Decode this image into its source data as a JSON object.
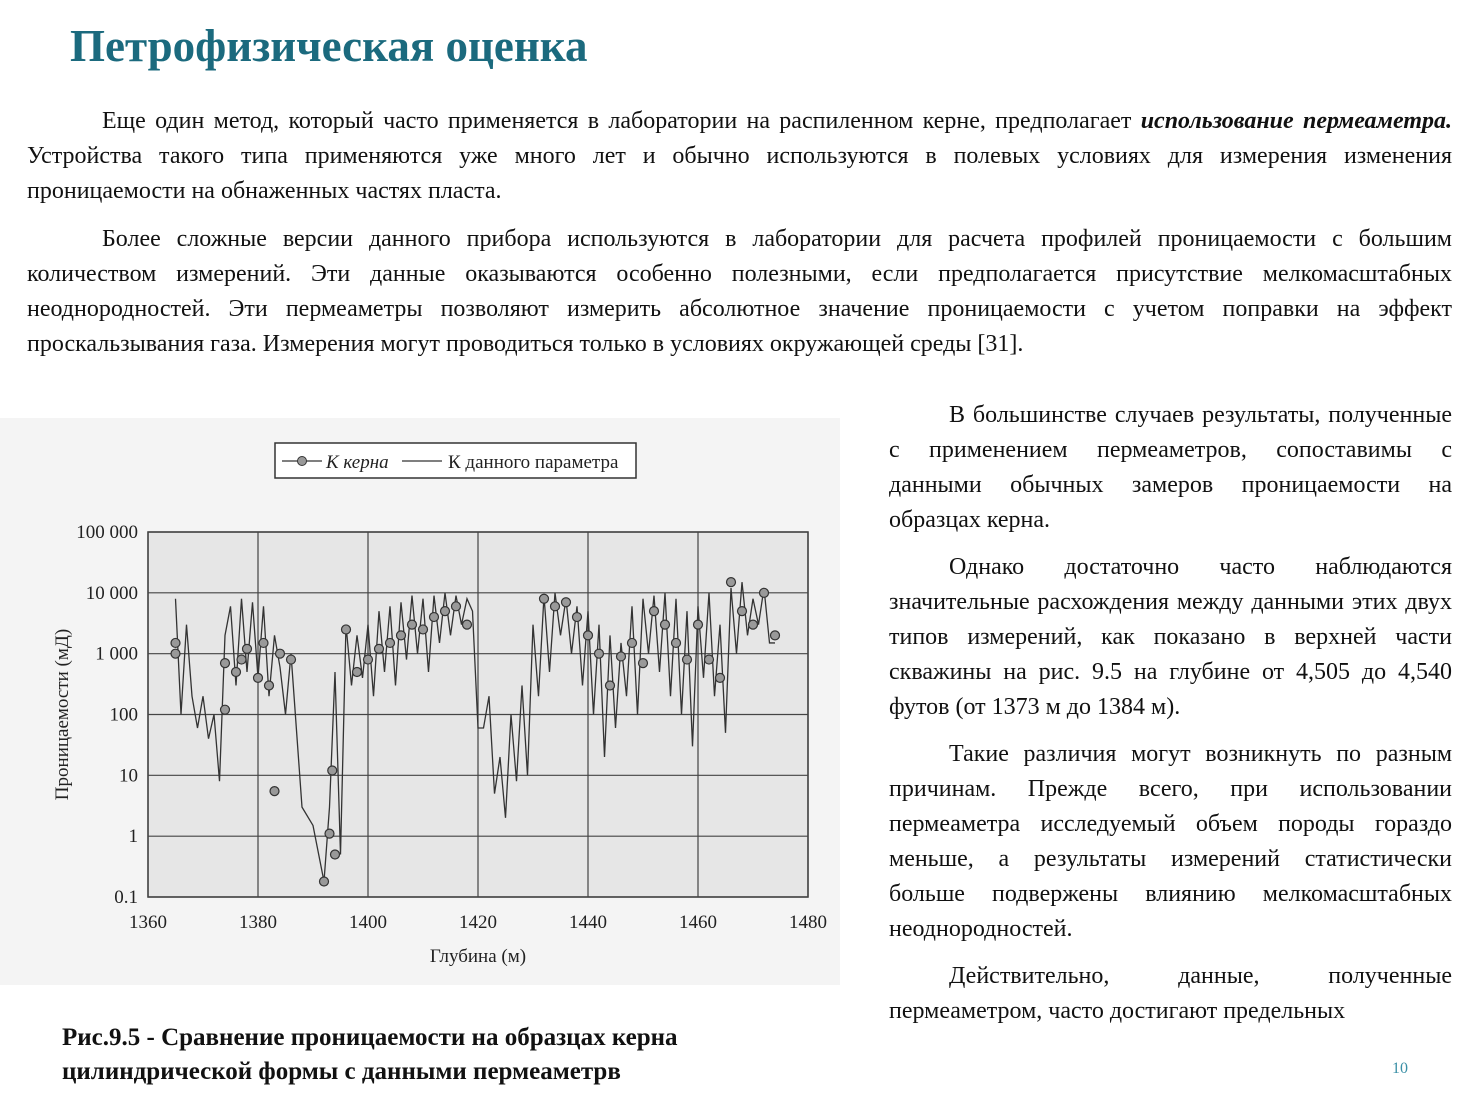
{
  "title": "Петрофизическая оценка",
  "paragraphs": [
    {
      "before": "Еще один метод, который часто применяется в лаборатории на распиленном керне, предполагает ",
      "emphasis": "использование пермеаметра.",
      "after": " Устройства такого типа применяются уже много лет и обычно используются в полевых условиях для измерения изменения проницаемости на обнаженных частях пласта."
    },
    {
      "text": "Более сложные версии данного прибора используются в лаборатории для расчета профилей проницаемости с большим количеством измерений. Эти данные оказываются особенно полезными, если предполагается присутствие мелкомасштабных неоднородностей. Эти пермеаметры позволяют измерить абсолютное значение проницаемости с учетом поправки на эффект проскальзывания газа. Измерения могут проводиться только в условиях окружающей среды [31]."
    }
  ],
  "side_paragraphs": [
    "В большинстве случаев результаты, полученные с применением пермеаметров, сопоставимы с данными обычных замеров проницаемости на образцах керна.",
    "Однако достаточно часто наблюдаются значительные расхождения между данными этих двух типов измерений, как показано в верхней части скважины на рис. 9.5 на глубине от 4,505 до 4,540 футов (от 1373 м до 1384 м).",
    "Такие различия могут возникнуть по разным причинам. Прежде всего, при использовании пермеаметра исследуемый объем породы гораздо меньше, а результаты измерений статистически больше подвержены влиянию мелкомасштабных неоднородностей.",
    "Действительно, данные, полученные пермеаметром, часто достигают предельных"
  ],
  "caption": "Рис.9.5 - Сравнение проницаемости на образцах керна цилиндрической формы с данными пермеаметрв",
  "page_number": "10",
  "chart_data": {
    "type": "line",
    "x_label": "Глубина (м)",
    "y_label": "Проницаемости (мД)",
    "xlim": [
      1360,
      1480
    ],
    "xticks": [
      1360,
      1380,
      1400,
      1420,
      1440,
      1460,
      1480
    ],
    "ylim": [
      0.1,
      100000
    ],
    "yticks": [
      {
        "value": 100000,
        "label": "100 000"
      },
      {
        "value": 10000,
        "label": "10 000"
      },
      {
        "value": 1000,
        "label": "1 000"
      },
      100,
      10,
      1,
      0.1
    ],
    "log_scale_y": true,
    "grid": true,
    "legend": "top",
    "series": [
      {
        "name": "К керна",
        "color": "#999999",
        "marker": "circle",
        "x": [
          1365,
          1365,
          1374,
          1374,
          1376,
          1377,
          1378,
          1380,
          1381,
          1382,
          1383,
          1384,
          1386,
          1392,
          1393,
          1393.5,
          1394,
          1396,
          1398,
          1400,
          1402,
          1404,
          1406,
          1408,
          1410,
          1412,
          1414,
          1416,
          1418,
          1432,
          1434,
          1436,
          1438,
          1440,
          1442,
          1444,
          1446,
          1448,
          1450,
          1452,
          1454,
          1456,
          1458,
          1460,
          1462,
          1464,
          1466,
          1468,
          1470,
          1472,
          1474
        ],
        "values": [
          1000,
          1500,
          120,
          700,
          500,
          800,
          1200,
          400,
          1500,
          300,
          5.5,
          1000,
          800,
          0.18,
          1.1,
          12,
          0.5,
          2500,
          500,
          800,
          1200,
          1500,
          2000,
          3000,
          2500,
          4000,
          5000,
          6000,
          3000,
          8000,
          6000,
          7000,
          4000,
          2000,
          1000,
          300,
          900,
          1500,
          700,
          5000,
          3000,
          1500,
          800,
          3000,
          800,
          400,
          15000,
          5000,
          3000,
          10000,
          2000
        ]
      },
      {
        "name": "К данного параметра",
        "color": "#333333",
        "x": [
          1365,
          1366,
          1367,
          1368,
          1369,
          1370,
          1371,
          1372,
          1373,
          1374,
          1375,
          1376,
          1377,
          1378,
          1379,
          1380,
          1381,
          1382,
          1383,
          1384,
          1385,
          1386,
          1388,
          1390,
          1392,
          1393,
          1394,
          1395,
          1396,
          1397,
          1398,
          1399,
          1400,
          1401,
          1402,
          1403,
          1404,
          1405,
          1406,
          1407,
          1408,
          1409,
          1410,
          1411,
          1412,
          1413,
          1414,
          1415,
          1416,
          1417,
          1418,
          1419,
          1420,
          1421,
          1422,
          1423,
          1424,
          1425,
          1426,
          1427,
          1428,
          1429,
          1430,
          1431,
          1432,
          1433,
          1434,
          1435,
          1436,
          1437,
          1438,
          1439,
          1440,
          1441,
          1442,
          1443,
          1444,
          1445,
          1446,
          1447,
          1448,
          1449,
          1450,
          1451,
          1452,
          1453,
          1454,
          1455,
          1456,
          1457,
          1458,
          1459,
          1460,
          1461,
          1462,
          1463,
          1464,
          1465,
          1466,
          1467,
          1468,
          1469,
          1470,
          1471,
          1472,
          1473,
          1474
        ],
        "values": [
          8000,
          100,
          3000,
          200,
          60,
          200,
          40,
          100,
          8,
          2000,
          6000,
          300,
          8000,
          500,
          7000,
          400,
          6000,
          200,
          2000,
          600,
          100,
          1000,
          3,
          1.5,
          0.18,
          3,
          500,
          0.5,
          3000,
          300,
          2000,
          400,
          3000,
          200,
          5000,
          500,
          6000,
          300,
          7000,
          800,
          9000,
          1000,
          8000,
          500,
          9000,
          1500,
          10000,
          2000,
          9000,
          3000,
          8000,
          5000,
          60,
          60,
          200,
          5,
          20,
          2,
          100,
          8,
          300,
          10,
          3000,
          200,
          9000,
          500,
          10000,
          2000,
          8000,
          1000,
          6000,
          300,
          5000,
          100,
          3000,
          20,
          2000,
          60,
          1500,
          200,
          6000,
          100,
          8000,
          1000,
          9000,
          500,
          10000,
          200,
          8000,
          100,
          5000,
          30,
          6000,
          400,
          10000,
          200,
          3000,
          50,
          12000,
          1000,
          15000,
          2000,
          8000,
          3000,
          12000,
          1500,
          1500
        ]
      }
    ]
  }
}
